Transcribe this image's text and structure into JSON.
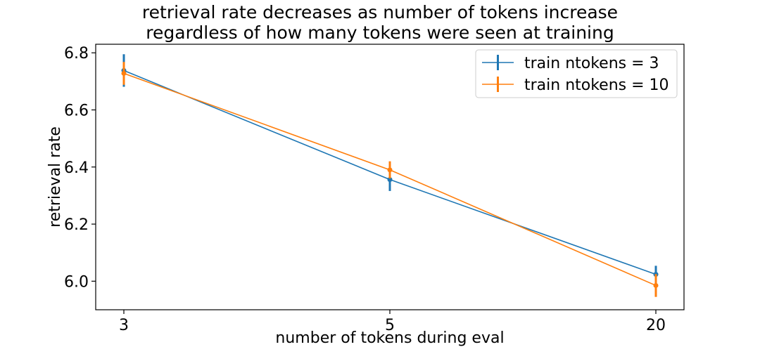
{
  "chart_data": {
    "type": "line",
    "title": "retrieval rate decreases as number of tokens increase\nregardless of how many tokens were seen at training",
    "title_lines": [
      "retrieval rate decreases as number of tokens increase",
      "regardless of how many tokens were seen at training"
    ],
    "xlabel": "number of tokens during eval",
    "ylabel": "retrieval rate",
    "categories": [
      "3",
      "5",
      "20"
    ],
    "ylim": [
      5.9,
      6.83
    ],
    "yticks": [
      "6.0",
      "6.2",
      "6.4",
      "6.6",
      "6.8"
    ],
    "ytick_values": [
      6.0,
      6.2,
      6.4,
      6.6,
      6.8
    ],
    "grid": false,
    "legend_position": "top-right",
    "error_bars": true,
    "series": [
      {
        "name": "train ntokens = 3",
        "color": "#1f77b4",
        "values": [
          6.738,
          6.356,
          6.024
        ],
        "errors": [
          0.057,
          0.04,
          0.03
        ]
      },
      {
        "name": "train ntokens = 10",
        "color": "#ff7f0e",
        "values": [
          6.728,
          6.39,
          5.985
        ],
        "errors": [
          0.04,
          0.03,
          0.04
        ]
      }
    ]
  }
}
